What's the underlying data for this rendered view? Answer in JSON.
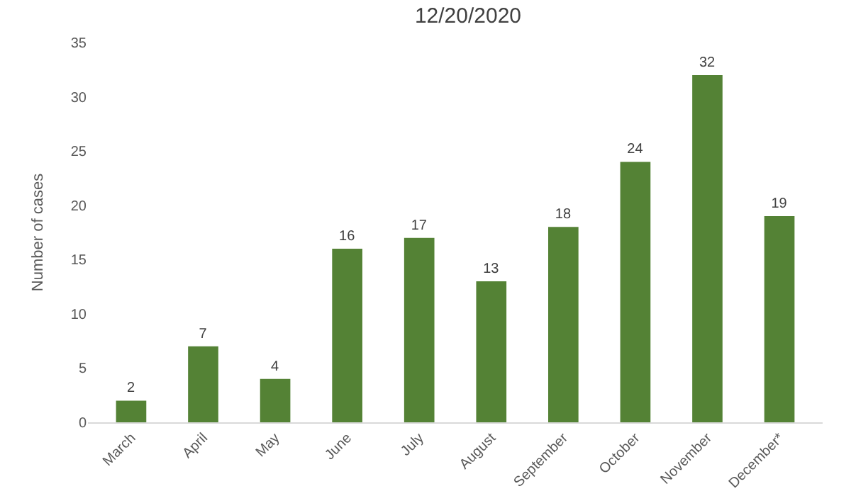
{
  "chart_data": {
    "type": "bar",
    "title": "12/20/2020",
    "ylabel": "Number of cases",
    "categories": [
      "March",
      "April",
      "May",
      "June",
      "July",
      "August",
      "September",
      "October",
      "November",
      "December*"
    ],
    "values": [
      2,
      7,
      4,
      16,
      17,
      13,
      18,
      24,
      32,
      19
    ],
    "color": "#548235",
    "ylim": [
      0,
      35
    ],
    "yticks": [
      0,
      5,
      10,
      15,
      20,
      25,
      30,
      35
    ],
    "grid": false,
    "legend": false,
    "data_labels": true
  }
}
